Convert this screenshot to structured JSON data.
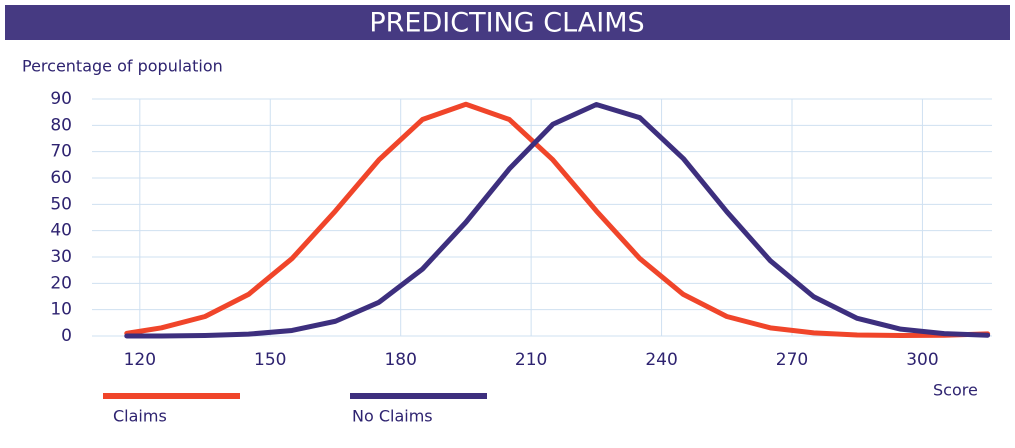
{
  "chart_data": {
    "type": "line",
    "title": "PREDICTING CLAIMS",
    "y_label": "Percentage of population",
    "x_label": "Score",
    "x": [
      117,
      125,
      135,
      145,
      155,
      165,
      175,
      185,
      195,
      205,
      215,
      225,
      235,
      245,
      255,
      265,
      275,
      285,
      295,
      305,
      315
    ],
    "series": [
      {
        "name": "Claims",
        "color": "#f0452a",
        "values": [
          1,
          3.1,
          7.4,
          15.8,
          29.4,
          47.5,
          66.9,
          82.2,
          88,
          82.2,
          66.9,
          47.5,
          29.4,
          15.8,
          7.4,
          3.1,
          1.2,
          0.4,
          0.2,
          0.3,
          0.8
        ]
      },
      {
        "name": "No Claims",
        "color": "#3d2f7e",
        "values": [
          0,
          0,
          0.2,
          0.7,
          2.1,
          5.6,
          12.8,
          25.4,
          43.2,
          63.5,
          80.4,
          87.9,
          82.9,
          67.4,
          47.2,
          28.6,
          14.9,
          6.7,
          2.6,
          0.9,
          0.3
        ]
      }
    ],
    "xlim": [
      109,
      316
    ],
    "xticks": [
      120,
      150,
      180,
      210,
      240,
      270,
      300
    ],
    "ylim": [
      0,
      90
    ],
    "yticks": [
      0,
      10,
      20,
      30,
      40,
      50,
      60,
      70,
      80,
      90
    ],
    "grid": true,
    "title_bar_color": "#463a82"
  }
}
